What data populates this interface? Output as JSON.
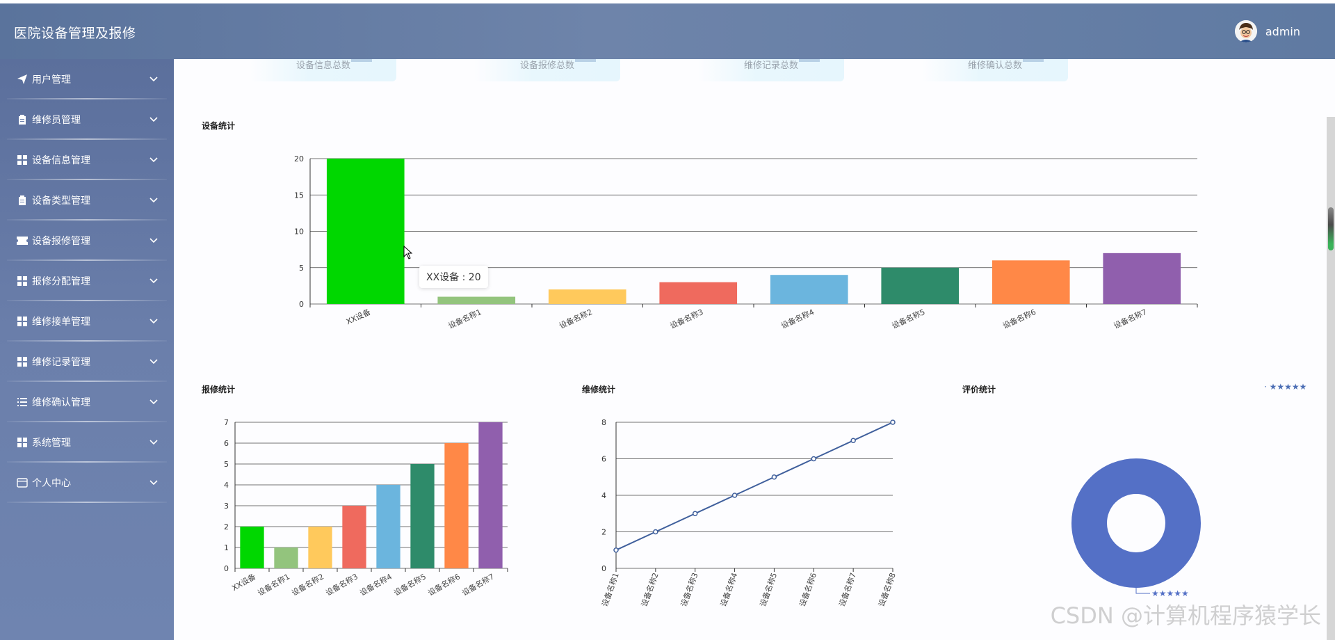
{
  "header": {
    "title": "医院设备管理及报修",
    "username": "admin"
  },
  "sidebar": {
    "items": [
      {
        "label": "用户管理",
        "icon": "paper-plane-icon"
      },
      {
        "label": "维修员管理",
        "icon": "clipboard-icon"
      },
      {
        "label": "设备信息管理",
        "icon": "grid-icon"
      },
      {
        "label": "设备类型管理",
        "icon": "clipboard-icon"
      },
      {
        "label": "设备报修管理",
        "icon": "ticket-icon"
      },
      {
        "label": "报修分配管理",
        "icon": "grid-icon"
      },
      {
        "label": "维修接单管理",
        "icon": "grid-icon"
      },
      {
        "label": "维修记录管理",
        "icon": "grid-icon"
      },
      {
        "label": "维修确认管理",
        "icon": "list-icon"
      },
      {
        "label": "系统管理",
        "icon": "grid-icon"
      },
      {
        "label": "个人中心",
        "icon": "card-icon"
      }
    ]
  },
  "stats": {
    "cards": [
      {
        "label": "设备信息总数"
      },
      {
        "label": "设备报修总数"
      },
      {
        "label": "维修记录总数"
      },
      {
        "label": "维修确认总数"
      }
    ]
  },
  "sections": {
    "device": "设备统计",
    "repair": "报修统计",
    "maintain": "维修统计",
    "review": "评价统计"
  },
  "tooltip": {
    "text": "XX设备 : 20"
  },
  "watermark": "CSDN @计算机程序猿学长",
  "chart_data": [
    {
      "type": "bar",
      "title": "设备统计",
      "categories": [
        "XX设备",
        "设备名称1",
        "设备名称2",
        "设备名称3",
        "设备名称4",
        "设备名称5",
        "设备名称6",
        "设备名称7"
      ],
      "values": [
        20,
        1,
        2,
        3,
        4,
        5,
        6,
        7
      ],
      "colors": [
        "#00d700",
        "#93c47d",
        "#ffc95c",
        "#ef6a5e",
        "#6bb5de",
        "#2e8b6a",
        "#ff8847",
        "#905fad"
      ],
      "ylim": [
        0,
        20
      ],
      "yticks": [
        0,
        5,
        10,
        15,
        20
      ],
      "grid": true
    },
    {
      "type": "bar",
      "title": "报修统计",
      "categories": [
        "XX设备",
        "设备名称1",
        "设备名称2",
        "设备名称3",
        "设备名称4",
        "设备名称5",
        "设备名称6",
        "设备名称7"
      ],
      "values": [
        2,
        1,
        2,
        3,
        4,
        5,
        6,
        7
      ],
      "colors": [
        "#00d700",
        "#93c47d",
        "#ffc95c",
        "#ef6a5e",
        "#6bb5de",
        "#2e8b6a",
        "#ff8847",
        "#905fad"
      ],
      "ylim": [
        0,
        7
      ],
      "yticks": [
        0,
        1,
        2,
        3,
        4,
        5,
        6,
        7
      ],
      "grid": true
    },
    {
      "type": "line",
      "title": "维修统计",
      "categories": [
        "设备名称1",
        "设备名称2",
        "设备名称3",
        "设备名称4",
        "设备名称5",
        "设备名称6",
        "设备名称7",
        "设备名称8"
      ],
      "values": [
        1,
        2,
        3,
        4,
        5,
        6,
        7,
        8
      ],
      "color": "#3f5f9c",
      "ylim": [
        0,
        8
      ],
      "yticks": [
        0,
        2,
        4,
        6,
        8
      ],
      "grid": true
    },
    {
      "type": "pie",
      "title": "评价统计",
      "slices": [
        {
          "name": "★★★★★",
          "value": 100
        }
      ],
      "color": "#5470c6",
      "legend": "top-right",
      "legend_label": "★★★★★"
    }
  ]
}
